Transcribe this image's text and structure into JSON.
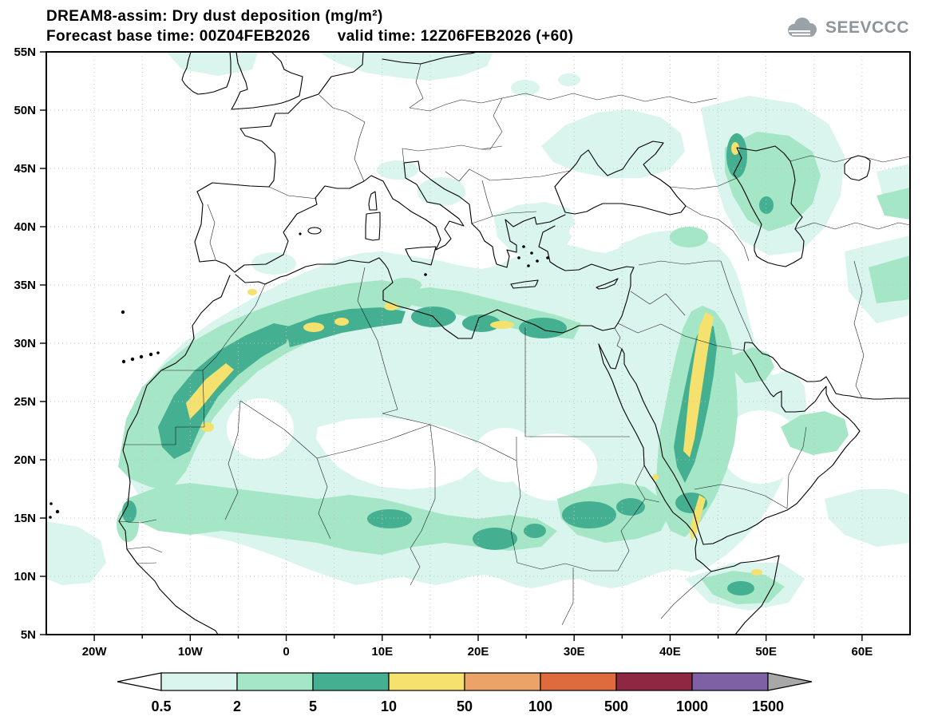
{
  "header": {
    "title": "DREAM8-assim: Dry dust deposition (mg/m²)",
    "subtitle": "Forecast base time: 00Z04FEB2026      valid time: 12Z06FEB2026 (+60)",
    "logo_text": "SEEVCCC"
  },
  "map": {
    "lon_min": -25,
    "lon_max": 65,
    "lat_min": 5,
    "lat_max": 55,
    "x_ticks": [
      {
        "label": "20W",
        "lon": -20
      },
      {
        "label": "10W",
        "lon": -10
      },
      {
        "label": "0",
        "lon": 0
      },
      {
        "label": "10E",
        "lon": 10
      },
      {
        "label": "20E",
        "lon": 20
      },
      {
        "label": "30E",
        "lon": 30
      },
      {
        "label": "40E",
        "lon": 40
      },
      {
        "label": "50E",
        "lon": 50
      },
      {
        "label": "60E",
        "lon": 60
      }
    ],
    "y_ticks": [
      {
        "label": "55N",
        "lat": 55
      },
      {
        "label": "50N",
        "lat": 50
      },
      {
        "label": "45N",
        "lat": 45
      },
      {
        "label": "40N",
        "lat": 40
      },
      {
        "label": "35N",
        "lat": 35
      },
      {
        "label": "30N",
        "lat": 30
      },
      {
        "label": "25N",
        "lat": 25
      },
      {
        "label": "20N",
        "lat": 20
      },
      {
        "label": "15N",
        "lat": 15
      },
      {
        "label": "10N",
        "lat": 10
      },
      {
        "label": "5N",
        "lat": 5
      }
    ],
    "grid_interval_deg": 5
  },
  "colorbar": {
    "labels": [
      "0.5",
      "2",
      "5",
      "10",
      "50",
      "100",
      "500",
      "1000",
      "1500"
    ],
    "colors": {
      "below": "#ffffff",
      "bands": [
        "#daf4ee",
        "#a5e6c6",
        "#44b091",
        "#f5e26e",
        "#eca367",
        "#dd6b3d",
        "#8e2741",
        "#7e61a5"
      ],
      "above": "#a8a8a8"
    }
  },
  "chart_data": {
    "type": "heatmap",
    "title": "DREAM8-assim: Dry dust deposition (mg/m²)",
    "units": "mg/m²",
    "forecast_base_time": "00Z04FEB2026",
    "valid_time": "12Z06FEB2026 (+60)",
    "lon_range": [
      -25,
      65
    ],
    "lat_range": [
      5,
      55
    ],
    "contour_levels": [
      0.5,
      2,
      5,
      10,
      50,
      100,
      500,
      1000,
      1500
    ],
    "bands_present_on_map": [
      "0.5-2",
      "2-5",
      "5-10",
      "10-50"
    ],
    "high_deposition_regions": [
      "Western Sahara / Mauritania",
      "northern Algeria / Atlas",
      "Libyan and Egyptian coast",
      "western Saudi Arabia along Red Sea (10-50 mg/m² band)",
      "southern Red Sea coast / Yemen",
      "Sahel belt (Niger, Chad, Sudan)",
      "Caspian lowland / Caucasus",
      "Horn of Africa / Somalia"
    ]
  }
}
